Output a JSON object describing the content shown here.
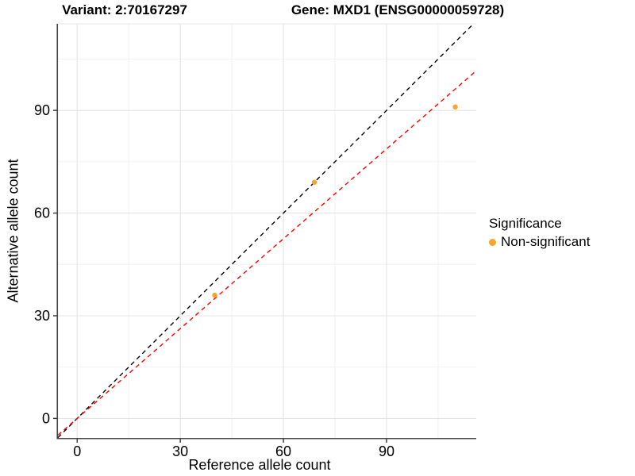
{
  "chart_data": {
    "type": "scatter",
    "title_left": "Variant: 2:70167297",
    "title_right": "Gene: MXD1 (ENSG00000059728)",
    "xlabel": "Reference allele count",
    "ylabel": "Alternative allele count",
    "x_ticks": [
      0,
      30,
      60,
      90
    ],
    "y_ticks": [
      0,
      30,
      60,
      90
    ],
    "x_minor_ticks": [
      15,
      45,
      75,
      105
    ],
    "y_minor_ticks": [
      15,
      45,
      75,
      105
    ],
    "xlim": [
      -5.6,
      116.1
    ],
    "ylim": [
      -5.7,
      115.3
    ],
    "points": [
      {
        "x": 40,
        "y": 36
      },
      {
        "x": 69,
        "y": 69
      },
      {
        "x": 110,
        "y": 91
      }
    ],
    "point_color": "#FCA22D",
    "point_radius": 3.2,
    "lines": [
      {
        "name": "identity-line",
        "slope": 1,
        "intercept": 0,
        "color": "#000000",
        "style": "dashed"
      },
      {
        "name": "fit-line",
        "slope": 0.875,
        "intercept": 0,
        "color": "#FF0000",
        "style": "dashed"
      }
    ],
    "legend": {
      "title": "Significance",
      "position": "right",
      "items": [
        {
          "label": "Non-significant",
          "color": "#FCA22D"
        }
      ]
    },
    "grid": {
      "major_color": "#E4E4E4",
      "minor_color": "#F1F1F1",
      "background": "#FFFFFF"
    },
    "axis": {
      "line_color": "#464646",
      "tick_color": "#333333",
      "tick_label_color": "#000000"
    }
  }
}
